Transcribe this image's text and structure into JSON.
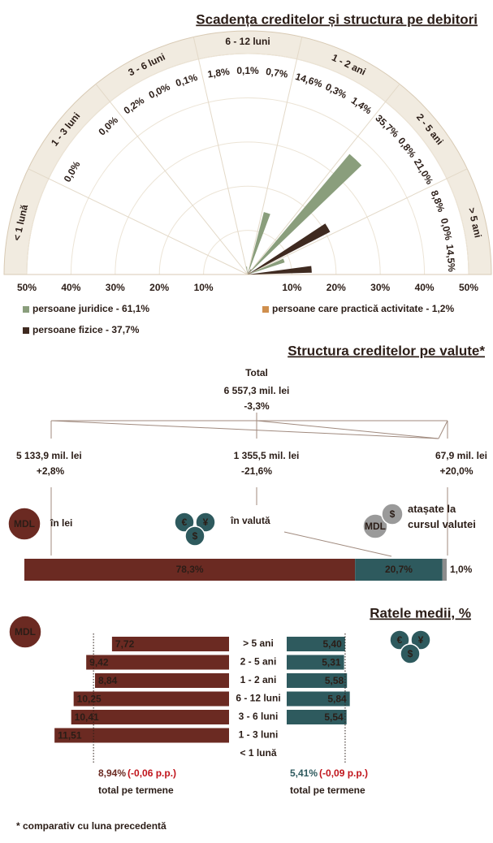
{
  "chart_data": [
    {
      "type": "rose",
      "title": "Scadența creditelor și structura pe debitori",
      "categories": [
        "< 1 lună",
        "1 - 3 luni",
        "3 - 6 luni",
        "6 - 12 luni",
        "1 - 2 ani",
        "2 - 5 ani",
        "> 5 ani"
      ],
      "series": [
        {
          "name": "persoane juridice - 61,1%",
          "color": "#8a9e7c",
          "values": [
            null,
            0.0,
            0.2,
            1.8,
            14.6,
            35.7,
            8.8
          ],
          "value_labels": [
            null,
            "0,0%",
            "0,2%",
            "1,8%",
            "14,6%",
            "35,7%",
            "8,8%"
          ]
        },
        {
          "name": "persoane care practică activitate - 1,2%",
          "color": "#cf8f4e",
          "values": [
            null,
            null,
            0.0,
            0.1,
            0.3,
            0.8,
            0.0
          ],
          "value_labels": [
            null,
            null,
            "0,0%",
            "0,1%",
            "0,3%",
            "0,8%",
            "0,0%"
          ]
        },
        {
          "name": "persoane fizice - 37,7%",
          "color": "#3f2a20",
          "values": [
            null,
            0.0,
            0.1,
            0.7,
            1.4,
            21.0,
            14.5
          ],
          "value_labels": [
            null,
            "0,0%",
            "0,1%",
            "0,7%",
            "1,4%",
            "21,0%",
            "14,5%"
          ]
        }
      ],
      "rlim": [
        0,
        50
      ],
      "rticks": [
        {
          "value": 10,
          "label": "10%"
        },
        {
          "value": 20,
          "label": "20%"
        },
        {
          "value": 30,
          "label": "30%"
        },
        {
          "value": 40,
          "label": "40%"
        },
        {
          "value": 50,
          "label": "50%"
        }
      ]
    },
    {
      "type": "stacked-bar",
      "title": "Structura creditelor pe valute*",
      "total_label": "Total",
      "total_amount": "6 557,3 mil. lei",
      "total_change": "-3,3%",
      "categories": [
        "în lei",
        "în valută",
        "atașate la cursul valutei"
      ],
      "amounts": [
        "5 133,9 mil. lei",
        "1 355,5 mil. lei",
        "67,9 mil. lei"
      ],
      "changes": [
        "+2,8%",
        "-21,6%",
        "+20,0%"
      ],
      "values": [
        78.3,
        20.7,
        1.0
      ],
      "value_labels": [
        "78,3%",
        "20,7%",
        "1,0%"
      ],
      "colors": [
        "#6b2a22",
        "#2e5a5e",
        "#8c8c8c"
      ],
      "xlim": [
        0,
        100
      ]
    },
    {
      "type": "diverging-bar",
      "title": "Ratele medii, %",
      "categories": [
        "> 5 ani",
        "2 - 5 ani",
        "1 - 2 ani",
        "6 - 12 luni",
        "3 - 6 luni",
        "1 - 3 luni",
        "< 1 lună"
      ],
      "series": [
        {
          "color": "#6b2a22",
          "direction": "left",
          "xlim": [
            0,
            12
          ],
          "values": [
            7.72,
            9.42,
            8.84,
            10.25,
            10.41,
            11.51,
            null
          ],
          "value_labels": [
            "7,72",
            "9,42",
            "8,84",
            "10,25",
            "10,41",
            "11,51",
            null
          ],
          "total": 8.94,
          "total_label": "8,94%",
          "total_change": "(-0,06 p.p.)",
          "total_note": "total pe termene"
        },
        {
          "color": "#2e5a5e",
          "direction": "right",
          "xlim": [
            0,
            10
          ],
          "values": [
            5.4,
            5.31,
            5.58,
            5.84,
            5.54,
            null,
            null
          ],
          "value_labels": [
            "5,40",
            "5,31",
            "5,58",
            "5,84",
            "5,54",
            null,
            null
          ],
          "total": 5.41,
          "total_label": "5,41%",
          "total_change": "(-0,09 p.p.)",
          "total_note": "total pe termene"
        }
      ]
    }
  ],
  "icons": {
    "mdl": "MDL",
    "currency": [
      "€",
      "¥",
      "$"
    ]
  },
  "footnote": "* comparativ cu luna precedentă"
}
